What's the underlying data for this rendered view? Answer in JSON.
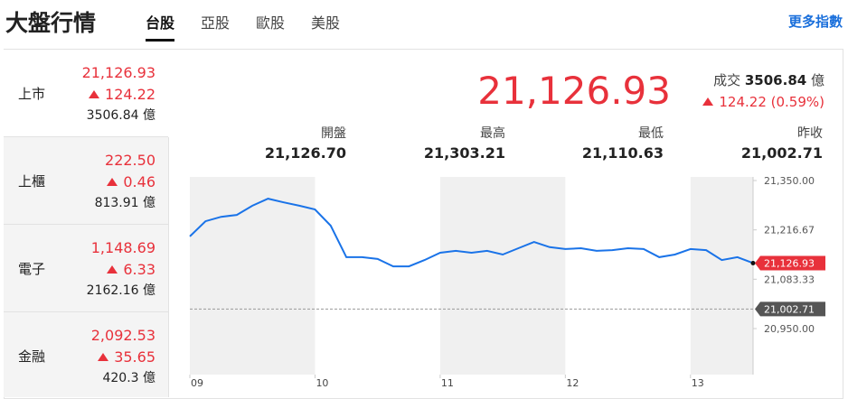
{
  "header": {
    "title": "大盤行情",
    "tabs": [
      "台股",
      "亞股",
      "歐股",
      "美股"
    ],
    "active_tab": 0,
    "more_link": "更多指數"
  },
  "markets": [
    {
      "name": "上市",
      "price": "21,126.93",
      "change": "124.22",
      "volume": "3506.84 億"
    },
    {
      "name": "上櫃",
      "price": "222.50",
      "change": "0.46",
      "volume": "813.91 億"
    },
    {
      "name": "電子",
      "price": "1,148.69",
      "change": "6.33",
      "volume": "2162.16 億"
    },
    {
      "name": "金融",
      "price": "2,092.53",
      "change": "35.65",
      "volume": "420.3 億"
    }
  ],
  "selected_market": 0,
  "quote": {
    "price": "21,126.93",
    "volume_label": "成交",
    "volume": "3506.84",
    "volume_unit": "億",
    "change": "124.22 (0.59%)"
  },
  "stats": [
    {
      "label": "開盤",
      "value": "21,126.70"
    },
    {
      "label": "最高",
      "value": "21,303.21"
    },
    {
      "label": "最低",
      "value": "21,110.63"
    },
    {
      "label": "昨收",
      "value": "21,002.71"
    }
  ],
  "chart_data": {
    "type": "line",
    "color": "#1a73e8",
    "x": [
      9,
      9.125,
      9.25,
      9.375,
      9.5,
      9.625,
      9.75,
      9.875,
      10,
      10.125,
      10.25,
      10.375,
      10.5,
      10.625,
      10.75,
      10.875,
      11,
      11.125,
      11.25,
      11.375,
      11.5,
      11.625,
      11.75,
      11.875,
      12,
      12.125,
      12.25,
      12.375,
      12.5,
      12.625,
      12.75,
      12.875,
      13,
      13.125,
      13.25,
      13.375,
      13.5
    ],
    "values": [
      21199,
      21240,
      21252,
      21257,
      21282,
      21301,
      21291,
      21282,
      21272,
      21228,
      21143,
      21143,
      21138,
      21118,
      21118,
      21135,
      21155,
      21160,
      21155,
      21160,
      21150,
      21167,
      21184,
      21170,
      21165,
      21167,
      21160,
      21162,
      21167,
      21165,
      21143,
      21150,
      21165,
      21162,
      21135,
      21143,
      21127
    ],
    "xlim": [
      9,
      13.5
    ],
    "xticks": [
      {
        "value": 9,
        "label": "09"
      },
      {
        "value": 10,
        "label": "10"
      },
      {
        "value": 11,
        "label": "11"
      },
      {
        "value": 12,
        "label": "12"
      },
      {
        "value": 13,
        "label": "13"
      }
    ],
    "ylim": [
      20950,
      21350
    ],
    "yticks": [
      {
        "value": 20950,
        "label": "20,950.00"
      },
      {
        "value": 21083.33,
        "label": "21,083.33"
      },
      {
        "value": 21216.67,
        "label": "21,216.67"
      },
      {
        "value": 21350,
        "label": "21,350.00"
      }
    ],
    "last_price": {
      "value": 21126.93,
      "label": "21,126.93",
      "color": "#e8313b"
    },
    "prev_close": {
      "value": 21002.71,
      "label": "21,002.71",
      "color": "#555555"
    }
  }
}
